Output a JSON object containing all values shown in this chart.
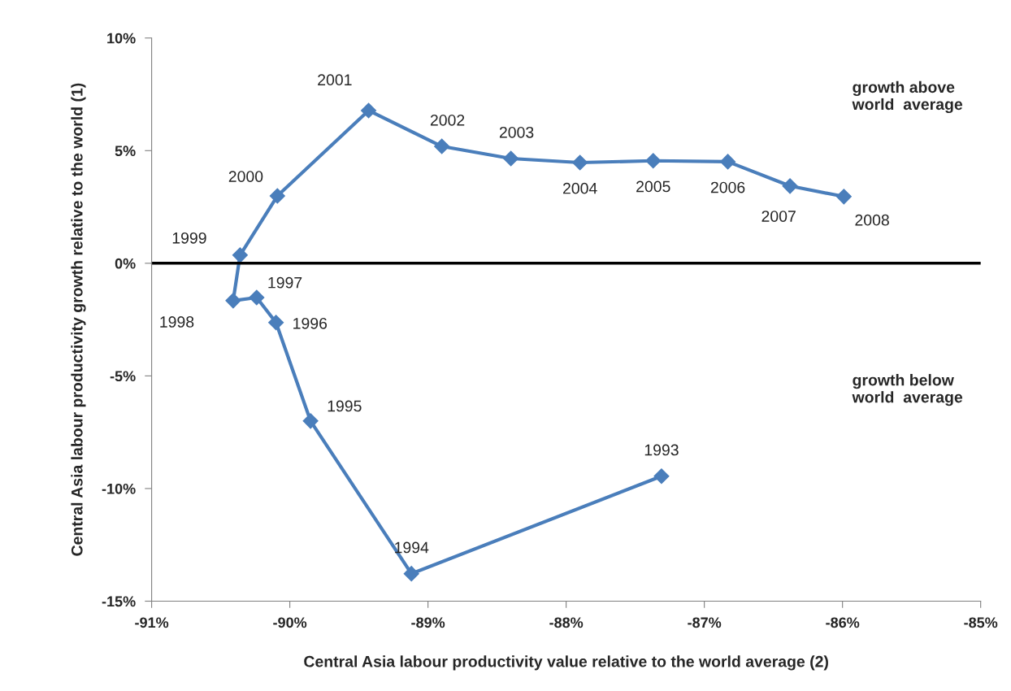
{
  "chart_data": {
    "type": "line",
    "xlabel": "Central Asia labour productivity value relative to the world average (2)",
    "ylabel": "Central Asia labour productivity growth relative to the world (1)",
    "x": [
      -87.31,
      -89.12,
      -89.85,
      -90.1,
      -90.24,
      -90.41,
      -90.36,
      -90.09,
      -89.43,
      -88.9,
      -88.4,
      -87.9,
      -87.37,
      -86.83,
      -86.38,
      -85.99
    ],
    "series": [
      {
        "color": "#4a7ebb",
        "values": [
          -9.45,
          -13.78,
          -7.0,
          -2.63,
          -1.52,
          -1.66,
          0.36,
          2.99,
          6.78,
          5.19,
          4.65,
          4.47,
          4.55,
          4.51,
          3.43,
          2.96
        ]
      }
    ],
    "annotations": [
      {
        "text": "1993",
        "x": -87.31,
        "y": -9.45
      },
      {
        "text": "1994",
        "x": -89.12,
        "y": -13.78
      },
      {
        "text": "1995",
        "x": -89.85,
        "y": -7.0
      },
      {
        "text": "1996",
        "x": -90.1,
        "y": -2.63
      },
      {
        "text": "1997",
        "x": -90.24,
        "y": -1.52
      },
      {
        "text": "1998",
        "x": -90.41,
        "y": -1.66
      },
      {
        "text": "1999",
        "x": -90.36,
        "y": 0.36
      },
      {
        "text": "2000",
        "x": -90.09,
        "y": 2.99
      },
      {
        "text": "2001",
        "x": -89.43,
        "y": 6.78
      },
      {
        "text": "2002",
        "x": -88.9,
        "y": 5.19
      },
      {
        "text": "2003",
        "x": -88.4,
        "y": 4.65
      },
      {
        "text": "2004",
        "x": -87.9,
        "y": 4.47
      },
      {
        "text": "2005",
        "x": -87.37,
        "y": 4.55
      },
      {
        "text": "2006",
        "x": -86.83,
        "y": 4.51
      },
      {
        "text": "2007",
        "x": -86.38,
        "y": 3.43
      },
      {
        "text": "2008",
        "x": -85.99,
        "y": 2.96
      },
      "growth above\nworld  average",
      "growth below\nworld  average"
    ],
    "ref_lines": [
      {
        "axis": "y",
        "value": 0,
        "color": "#000000"
      }
    ],
    "xlim": [
      -91,
      -85
    ],
    "xticks": [
      {
        "value": -91,
        "label": "-91%"
      },
      {
        "value": -90,
        "label": "-90%"
      },
      {
        "value": -89,
        "label": "-89%"
      },
      {
        "value": -88,
        "label": "-88%"
      },
      {
        "value": -87,
        "label": "-87%"
      },
      {
        "value": -86,
        "label": "-86%"
      },
      {
        "value": -85,
        "label": "-85%"
      }
    ],
    "ylim": [
      -15,
      10
    ],
    "yticks": [
      {
        "value": -15,
        "label": "-15%"
      },
      {
        "value": -10,
        "label": "-10%"
      },
      {
        "value": -5,
        "label": "-5%"
      },
      {
        "value": 0,
        "label": "0%"
      },
      {
        "value": 5,
        "label": "5%"
      },
      {
        "value": 10,
        "label": "10%"
      }
    ],
    "grid": false,
    "legend": false,
    "marker": "diamond",
    "line_style": "solid"
  }
}
